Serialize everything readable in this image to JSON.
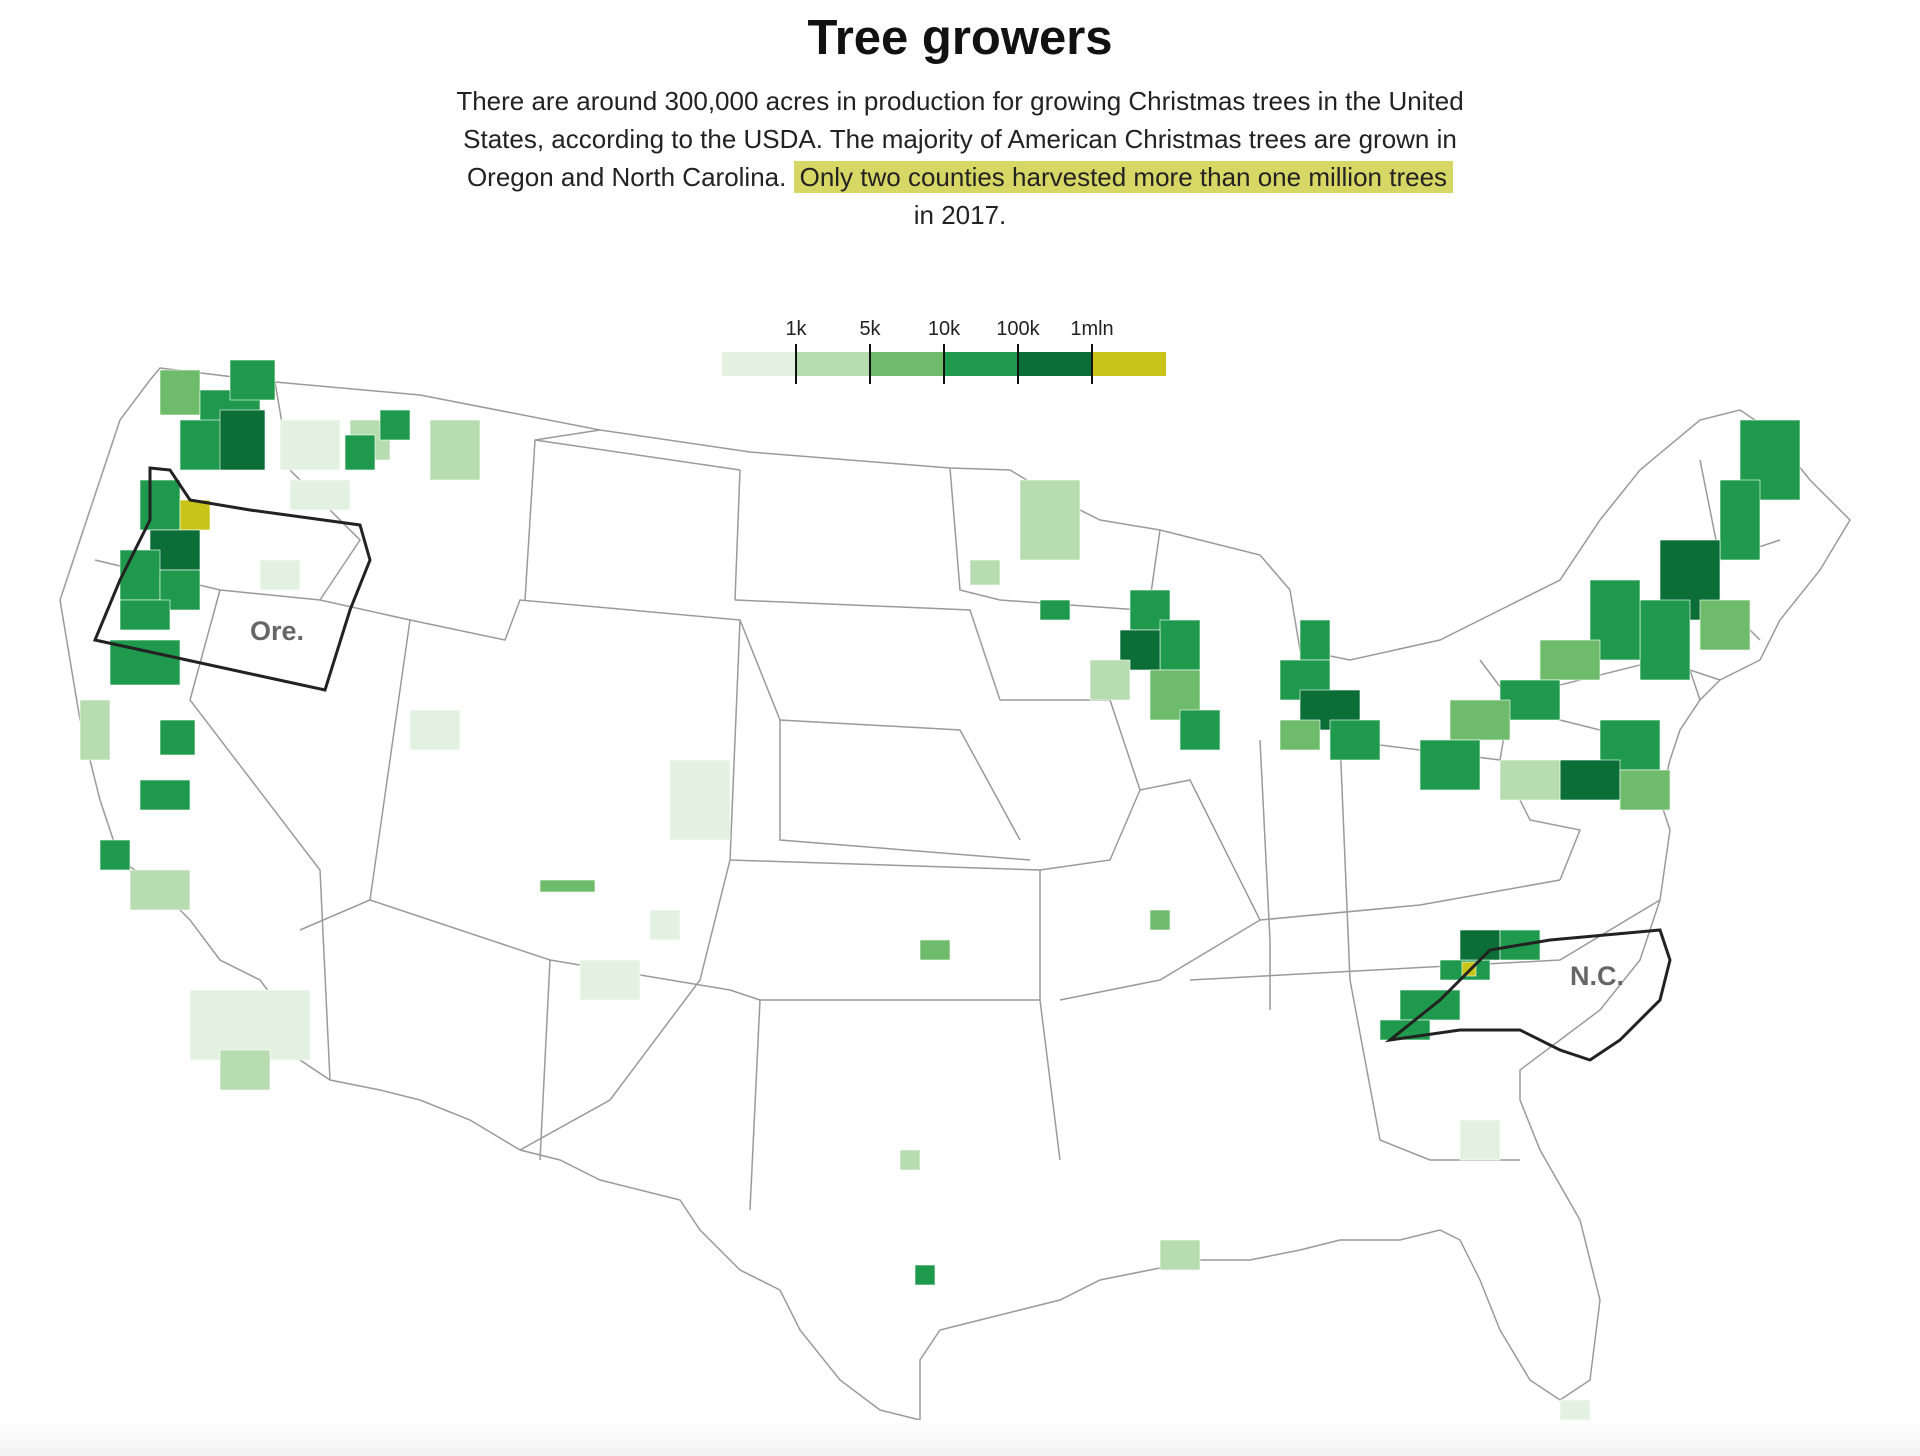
{
  "header": {
    "title": "Tree growers",
    "intro_before": "There are around 300,000 acres in production for growing Christmas trees in the United States, according to the USDA. The majority of American Christmas trees are grown in Oregon and North Carolina.",
    "intro_highlight": "Only two counties harvested more than one million trees",
    "intro_after": "in 2017."
  },
  "legend": {
    "ticks": [
      "1k",
      "5k",
      "10k",
      "100k",
      "1mln"
    ],
    "colors": [
      "#e3f1e0",
      "#b6dcb0",
      "#6fbb6c",
      "#1f9a4c",
      "#0c6e37",
      "#c9c419"
    ]
  },
  "map": {
    "state_labels": {
      "oregon": "Ore.",
      "north_carolina": "N.C."
    },
    "colors": {
      "state_border": "#9a9a9a",
      "highlight_border": "#222222",
      "over_one_million": "#c9c419"
    }
  }
}
